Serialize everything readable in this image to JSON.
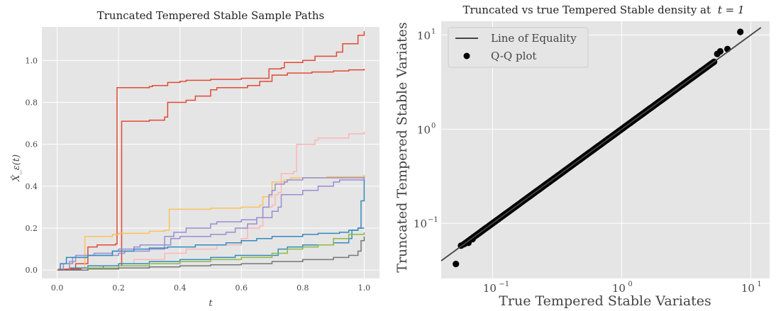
{
  "chart_data": [
    {
      "type": "line",
      "title": "Truncated Tempered Stable Sample Paths",
      "xlabel": "t",
      "ylabel": "X̂_ε(t)",
      "xlim": [
        -0.05,
        1.05
      ],
      "ylim": [
        -0.04,
        1.16
      ],
      "xticks": [
        0.0,
        0.2,
        0.4,
        0.6,
        0.8,
        1.0
      ],
      "yticks": [
        0.0,
        0.2,
        0.4,
        0.6,
        0.8,
        1.0
      ],
      "xtick_labels": [
        "0.0",
        "0.2",
        "0.4",
        "0.6",
        "0.8",
        "1.0"
      ],
      "ytick_labels": [
        "0.0",
        "0.2",
        "0.4",
        "0.6",
        "0.8",
        "1.0"
      ],
      "grid": true,
      "step": true,
      "series": [
        {
          "color": "#E24A33",
          "points": [
            [
              0,
              0
            ],
            [
              0.005,
              0.004
            ],
            [
              0.04,
              0.01
            ],
            [
              0.06,
              0.03
            ],
            [
              0.1,
              0.11
            ],
            [
              0.13,
              0.12
            ],
            [
              0.15,
              0.12
            ],
            [
              0.19,
              0.125
            ],
            [
              0.195,
              0.87
            ],
            [
              0.3,
              0.875
            ],
            [
              0.31,
              0.88
            ],
            [
              0.36,
              0.895
            ],
            [
              0.4,
              0.9
            ],
            [
              0.42,
              0.905
            ],
            [
              0.5,
              0.91
            ],
            [
              0.6,
              0.915
            ],
            [
              0.66,
              0.915
            ],
            [
              0.69,
              0.96
            ],
            [
              0.73,
              0.965
            ],
            [
              0.74,
              0.99
            ],
            [
              0.8,
              1.0
            ],
            [
              0.84,
              1.02
            ],
            [
              0.91,
              1.04
            ],
            [
              0.93,
              1.08
            ],
            [
              0.98,
              1.12
            ],
            [
              1.0,
              1.14
            ]
          ]
        },
        {
          "color": "#E24A33",
          "points": [
            [
              0,
              0
            ],
            [
              0.03,
              0.005
            ],
            [
              0.08,
              0.01
            ],
            [
              0.15,
              0.02
            ],
            [
              0.205,
              0.02
            ],
            [
              0.21,
              0.71
            ],
            [
              0.3,
              0.715
            ],
            [
              0.35,
              0.73
            ],
            [
              0.36,
              0.8
            ],
            [
              0.42,
              0.81
            ],
            [
              0.45,
              0.83
            ],
            [
              0.5,
              0.86
            ],
            [
              0.52,
              0.87
            ],
            [
              0.62,
              0.88
            ],
            [
              0.66,
              0.9
            ],
            [
              0.7,
              0.93
            ],
            [
              0.75,
              0.94
            ],
            [
              0.83,
              0.945
            ],
            [
              0.9,
              0.95
            ],
            [
              0.95,
              0.955
            ],
            [
              1.0,
              0.96
            ]
          ]
        },
        {
          "color": "#FFB5B8",
          "points": [
            [
              0,
              0
            ],
            [
              0.08,
              0.01
            ],
            [
              0.14,
              0.02
            ],
            [
              0.2,
              0.03
            ],
            [
              0.25,
              0.05
            ],
            [
              0.35,
              0.08
            ],
            [
              0.42,
              0.1
            ],
            [
              0.52,
              0.12
            ],
            [
              0.6,
              0.15
            ],
            [
              0.62,
              0.2
            ],
            [
              0.66,
              0.21
            ],
            [
              0.67,
              0.3
            ],
            [
              0.7,
              0.31
            ],
            [
              0.71,
              0.36
            ],
            [
              0.72,
              0.37
            ],
            [
              0.73,
              0.46
            ],
            [
              0.77,
              0.47
            ],
            [
              0.78,
              0.6
            ],
            [
              0.84,
              0.62
            ],
            [
              0.85,
              0.63
            ],
            [
              0.95,
              0.65
            ],
            [
              1.0,
              0.66
            ]
          ]
        },
        {
          "color": "#FBC15E",
          "points": [
            [
              0,
              0
            ],
            [
              0.08,
              0.01
            ],
            [
              0.09,
              0.16
            ],
            [
              0.18,
              0.17
            ],
            [
              0.2,
              0.175
            ],
            [
              0.3,
              0.185
            ],
            [
              0.35,
              0.19
            ],
            [
              0.365,
              0.29
            ],
            [
              0.5,
              0.295
            ],
            [
              0.6,
              0.3
            ],
            [
              0.64,
              0.3
            ],
            [
              0.66,
              0.31
            ],
            [
              0.67,
              0.35
            ],
            [
              0.7,
              0.42
            ],
            [
              0.74,
              0.43
            ],
            [
              0.76,
              0.44
            ],
            [
              0.88,
              0.445
            ],
            [
              1.0,
              0.455
            ]
          ]
        },
        {
          "color": "#988ED5",
          "points": [
            [
              0,
              0
            ],
            [
              0.04,
              0.04
            ],
            [
              0.06,
              0.07
            ],
            [
              0.12,
              0.08
            ],
            [
              0.18,
              0.09
            ],
            [
              0.2,
              0.1
            ],
            [
              0.25,
              0.11
            ],
            [
              0.27,
              0.12
            ],
            [
              0.35,
              0.16
            ],
            [
              0.38,
              0.18
            ],
            [
              0.42,
              0.2
            ],
            [
              0.5,
              0.22
            ],
            [
              0.52,
              0.23
            ],
            [
              0.6,
              0.24
            ],
            [
              0.65,
              0.25
            ],
            [
              0.67,
              0.3
            ],
            [
              0.69,
              0.36
            ],
            [
              0.7,
              0.38
            ],
            [
              0.71,
              0.41
            ],
            [
              0.74,
              0.42
            ],
            [
              0.75,
              0.43
            ],
            [
              0.8,
              0.44
            ],
            [
              1.0,
              0.445
            ]
          ]
        },
        {
          "color": "#988ED5",
          "points": [
            [
              0,
              0
            ],
            [
              0.02,
              0.03
            ],
            [
              0.05,
              0.06
            ],
            [
              0.1,
              0.07
            ],
            [
              0.2,
              0.08
            ],
            [
              0.22,
              0.09
            ],
            [
              0.3,
              0.1
            ],
            [
              0.35,
              0.12
            ],
            [
              0.37,
              0.15
            ],
            [
              0.4,
              0.16
            ],
            [
              0.5,
              0.17
            ],
            [
              0.55,
              0.18
            ],
            [
              0.58,
              0.2
            ],
            [
              0.62,
              0.22
            ],
            [
              0.65,
              0.25
            ],
            [
              0.7,
              0.28
            ],
            [
              0.72,
              0.3
            ],
            [
              0.73,
              0.36
            ],
            [
              0.8,
              0.38
            ],
            [
              0.85,
              0.4
            ],
            [
              0.9,
              0.42
            ],
            [
              0.92,
              0.43
            ],
            [
              1.0,
              0.44
            ]
          ]
        },
        {
          "color": "#348ABD",
          "points": [
            [
              0,
              0
            ],
            [
              0.01,
              0.03
            ],
            [
              0.03,
              0.06
            ],
            [
              0.1,
              0.07
            ],
            [
              0.15,
              0.07
            ],
            [
              0.18,
              0.09
            ],
            [
              0.25,
              0.1
            ],
            [
              0.3,
              0.105
            ],
            [
              0.36,
              0.11
            ],
            [
              0.4,
              0.11
            ],
            [
              0.45,
              0.12
            ],
            [
              0.5,
              0.12
            ],
            [
              0.55,
              0.13
            ],
            [
              0.6,
              0.14
            ],
            [
              0.65,
              0.15
            ],
            [
              0.7,
              0.16
            ],
            [
              0.8,
              0.17
            ],
            [
              0.85,
              0.175
            ],
            [
              0.92,
              0.18
            ],
            [
              0.95,
              0.19
            ],
            [
              0.98,
              0.2
            ],
            [
              1.0,
              0.2
            ]
          ]
        },
        {
          "color": "#348ABD",
          "points": [
            [
              0,
              0
            ],
            [
              0.05,
              0.01
            ],
            [
              0.1,
              0.02
            ],
            [
              0.2,
              0.03
            ],
            [
              0.3,
              0.04
            ],
            [
              0.4,
              0.05
            ],
            [
              0.5,
              0.06
            ],
            [
              0.55,
              0.06
            ],
            [
              0.58,
              0.07
            ],
            [
              0.7,
              0.07
            ],
            [
              0.72,
              0.1
            ],
            [
              0.75,
              0.11
            ],
            [
              0.8,
              0.12
            ],
            [
              0.9,
              0.13
            ],
            [
              0.95,
              0.15
            ],
            [
              0.96,
              0.19
            ],
            [
              0.98,
              0.2
            ],
            [
              0.99,
              0.33
            ],
            [
              1.0,
              0.43
            ]
          ]
        },
        {
          "color": "#8EBA42",
          "points": [
            [
              0,
              0
            ],
            [
              0.1,
              0.01
            ],
            [
              0.2,
              0.02
            ],
            [
              0.3,
              0.03
            ],
            [
              0.4,
              0.04
            ],
            [
              0.5,
              0.05
            ],
            [
              0.6,
              0.06
            ],
            [
              0.7,
              0.08
            ],
            [
              0.75,
              0.1
            ],
            [
              0.8,
              0.11
            ],
            [
              0.85,
              0.12
            ],
            [
              0.9,
              0.15
            ],
            [
              0.95,
              0.17
            ],
            [
              1.0,
              0.18
            ]
          ]
        },
        {
          "color": "#777777",
          "points": [
            [
              0,
              0
            ],
            [
              0.1,
              0.005
            ],
            [
              0.2,
              0.01
            ],
            [
              0.3,
              0.015
            ],
            [
              0.4,
              0.02
            ],
            [
              0.5,
              0.025
            ],
            [
              0.6,
              0.03
            ],
            [
              0.7,
              0.04
            ],
            [
              0.8,
              0.05
            ],
            [
              0.9,
              0.06
            ],
            [
              0.95,
              0.07
            ],
            [
              0.98,
              0.09
            ],
            [
              0.99,
              0.14
            ],
            [
              1.0,
              0.16
            ]
          ]
        }
      ]
    },
    {
      "type": "scatter",
      "title": "Truncated vs true Tempered Stable density at",
      "title_math": "t = 1",
      "xlabel": "True Tempered Stable Variates",
      "ylabel": "Truncated Tempered Stable Variates",
      "xscale": "log",
      "yscale": "log",
      "xlim": [
        0.04,
        14
      ],
      "ylim": [
        0.026,
        14
      ],
      "xticks": [
        0.1,
        1,
        10
      ],
      "yticks": [
        0.1,
        1,
        10
      ],
      "xtick_labels": [
        "10",
        "10",
        "10"
      ],
      "xtick_exponents": [
        "−1",
        "0",
        "1"
      ],
      "ytick_labels": [
        "10",
        "10",
        "10"
      ],
      "ytick_exponents": [
        "−1",
        "0",
        "1"
      ],
      "grid": true,
      "legend": {
        "placement": "top-left",
        "entries": [
          {
            "label": "Line of Equality",
            "kind": "line",
            "color": "#444444"
          },
          {
            "label": "Q-Q plot",
            "kind": "marker",
            "color": "#000000"
          }
        ]
      },
      "equality_line": [
        [
          0.04,
          0.04
        ],
        [
          12,
          12
        ]
      ],
      "qq_range": [
        0.06,
        5.2
      ],
      "outliers": [
        [
          0.052,
          0.037
        ],
        [
          0.057,
          0.058
        ],
        [
          0.065,
          0.062
        ],
        [
          0.07,
          0.068
        ],
        [
          5.5,
          6.3
        ],
        [
          5.8,
          6.7
        ],
        [
          6.6,
          7.1
        ],
        [
          8.3,
          10.8
        ]
      ]
    }
  ]
}
